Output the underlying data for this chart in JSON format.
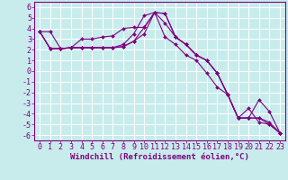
{
  "xlabel": "Windchill (Refroidissement éolien,°C)",
  "background_color": "#c8ecec",
  "grid_color": "#ffffff",
  "line_color": "#800080",
  "xlim": [
    -0.5,
    23.5
  ],
  "ylim": [
    -6.5,
    6.5
  ],
  "xtick_vals": [
    0,
    1,
    2,
    3,
    4,
    5,
    6,
    7,
    8,
    9,
    10,
    11,
    12,
    13,
    14,
    15,
    16,
    17,
    18,
    19,
    20,
    21,
    22,
    23
  ],
  "ytick_vals": [
    -6,
    -5,
    -4,
    -3,
    -2,
    -1,
    0,
    1,
    2,
    3,
    4,
    5,
    6
  ],
  "series": [
    [
      3.7,
      3.7,
      2.1,
      2.2,
      3.0,
      3.0,
      3.2,
      3.3,
      4.0,
      4.1,
      4.1,
      5.5,
      3.2,
      2.5,
      1.5,
      1.0,
      -0.2,
      -1.5,
      -2.2,
      -4.4,
      -3.5,
      -4.8,
      -5.0,
      -5.8
    ],
    [
      3.7,
      2.1,
      2.1,
      2.2,
      2.2,
      2.2,
      2.2,
      2.2,
      2.5,
      3.5,
      5.2,
      5.5,
      5.4,
      3.2,
      2.5,
      1.5,
      1.0,
      -0.2,
      -2.2,
      -4.4,
      -4.4,
      -4.4,
      -4.8,
      -5.8
    ],
    [
      3.7,
      2.1,
      2.1,
      2.2,
      2.2,
      2.2,
      2.2,
      2.2,
      2.3,
      2.8,
      4.1,
      5.5,
      5.4,
      3.2,
      2.5,
      1.5,
      1.0,
      -0.2,
      -2.2,
      -4.4,
      -4.4,
      -4.4,
      -5.0,
      -5.8
    ],
    [
      3.7,
      2.1,
      2.1,
      2.2,
      2.2,
      2.2,
      2.2,
      2.2,
      2.3,
      2.8,
      3.5,
      5.5,
      4.5,
      3.2,
      2.5,
      1.5,
      1.0,
      -0.2,
      -2.2,
      -4.4,
      -4.4,
      -2.7,
      -3.8,
      -5.8
    ]
  ],
  "tick_fontsize": 6,
  "xlabel_fontsize": 6.5,
  "marker": "D",
  "markersize": 2.0,
  "linewidth": 0.8
}
